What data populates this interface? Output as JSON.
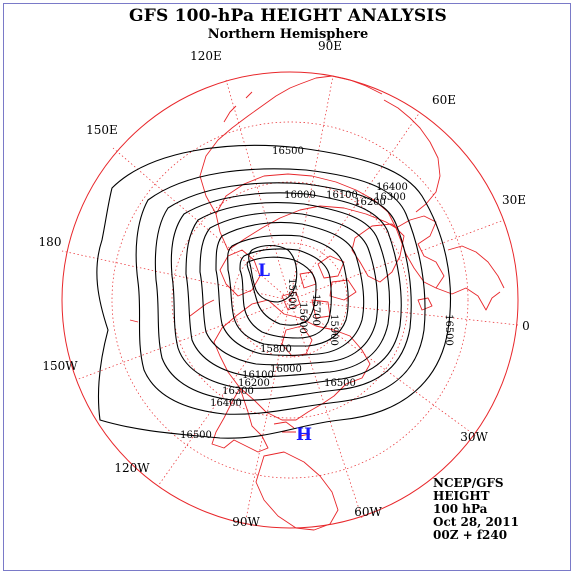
{
  "title": "GFS 100-hPa HEIGHT ANALYSIS",
  "subtitle": "Northern Hemisphere",
  "longitude_labels": [
    "90E",
    "60E",
    "30E",
    "0",
    "30W",
    "60W",
    "90W",
    "120W",
    "150W",
    "180",
    "150E",
    "120E"
  ],
  "contour_labels": [
    "16500",
    "16400",
    "16300",
    "16200",
    "16100",
    "16000",
    "15900",
    "15800",
    "15700",
    "15600",
    "15500"
  ],
  "center_labels": {
    "low": "L",
    "high": "H"
  },
  "info": {
    "source": "NCEP/GFS",
    "field": "HEIGHT",
    "level": "100 hPa",
    "date": "Oct 28, 2011",
    "run": "00Z + f240"
  },
  "colors": {
    "coast": "#e8262a",
    "grid": "#e8262a",
    "contour": "#000000",
    "centers": "#1a1aff",
    "frame": "#7a7ac8"
  }
}
